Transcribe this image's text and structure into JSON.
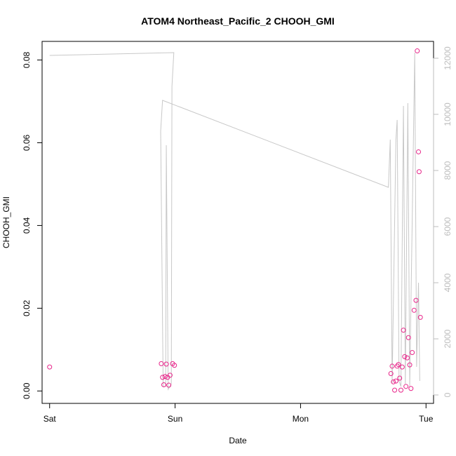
{
  "chart_data": {
    "type": "scatter",
    "title": "ATOM4 Northeast_Pacific_2 CHOOH_GMI",
    "xlabel": "Date",
    "ylabel": "CHOOH_GMI",
    "x_ticks": [
      {
        "day": 0,
        "label": "Sat"
      },
      {
        "day": 1,
        "label": "Sun"
      },
      {
        "day": 2,
        "label": "Mon"
      },
      {
        "day": 3,
        "label": "Tue"
      }
    ],
    "xlim": [
      -0.06,
      3.06
    ],
    "ylim": [
      -0.003,
      0.0845
    ],
    "y_ticks": [
      0.0,
      0.02,
      0.04,
      0.06,
      0.08
    ],
    "y_tick_labels": [
      "0.00",
      "0.02",
      "0.04",
      "0.06",
      "0.08"
    ],
    "y2lim": [
      -300,
      12600
    ],
    "y2_ticks": [
      0,
      2000,
      4000,
      6000,
      8000,
      10000,
      12000
    ],
    "y2_tick_labels": [
      "0",
      "2000",
      "4000",
      "6000",
      "8000",
      "10000",
      "12000"
    ],
    "grid": false,
    "colors": {
      "points": "#e8268a",
      "altitude_line": "#c8c8c8",
      "axis": "#000000",
      "right_axis": "#bdbdbd"
    },
    "series": [
      {
        "marker": "open-circle",
        "axis": "left",
        "points": [
          {
            "x": 0.0,
            "y": 0.0058
          },
          {
            "x": 0.89,
            "y": 0.0066
          },
          {
            "x": 0.9,
            "y": 0.0033
          },
          {
            "x": 0.91,
            "y": 0.0015
          },
          {
            "x": 0.92,
            "y": 0.0035
          },
          {
            "x": 0.93,
            "y": 0.0065
          },
          {
            "x": 0.94,
            "y": 0.0033
          },
          {
            "x": 0.95,
            "y": 0.0014
          },
          {
            "x": 0.96,
            "y": 0.0038
          },
          {
            "x": 0.98,
            "y": 0.0066
          },
          {
            "x": 0.995,
            "y": 0.0062
          },
          {
            "x": 2.72,
            "y": 0.0042
          },
          {
            "x": 2.73,
            "y": 0.006
          },
          {
            "x": 2.74,
            "y": 0.0022
          },
          {
            "x": 2.75,
            "y": 0.0002
          },
          {
            "x": 2.76,
            "y": 0.0024
          },
          {
            "x": 2.77,
            "y": 0.006
          },
          {
            "x": 2.78,
            "y": 0.0064
          },
          {
            "x": 2.79,
            "y": 0.0031
          },
          {
            "x": 2.8,
            "y": 0.0002
          },
          {
            "x": 2.81,
            "y": 0.0058
          },
          {
            "x": 2.82,
            "y": 0.0147
          },
          {
            "x": 2.83,
            "y": 0.0083
          },
          {
            "x": 2.84,
            "y": 0.0011
          },
          {
            "x": 2.85,
            "y": 0.008
          },
          {
            "x": 2.86,
            "y": 0.0129
          },
          {
            "x": 2.87,
            "y": 0.0063
          },
          {
            "x": 2.88,
            "y": 0.0006
          },
          {
            "x": 2.89,
            "y": 0.0093
          },
          {
            "x": 2.905,
            "y": 0.0195
          },
          {
            "x": 2.92,
            "y": 0.0219
          },
          {
            "x": 2.93,
            "y": 0.0822
          },
          {
            "x": 2.94,
            "y": 0.0578
          },
          {
            "x": 2.945,
            "y": 0.053
          },
          {
            "x": 2.955,
            "y": 0.0178
          }
        ]
      },
      {
        "marker": "line",
        "axis": "right",
        "points": [
          {
            "x": 0.0,
            "y": 12100
          },
          {
            "x": 0.99,
            "y": 12200
          },
          {
            "x": 0.975,
            "y": 11000
          },
          {
            "x": 0.97,
            "y": 400
          },
          {
            "x": 0.945,
            "y": 200
          },
          {
            "x": 0.93,
            "y": 8900
          },
          {
            "x": 0.925,
            "y": 300
          },
          {
            "x": 0.905,
            "y": 300
          },
          {
            "x": 0.885,
            "y": 9400
          },
          {
            "x": 0.9,
            "y": 10500
          },
          {
            "x": 2.7,
            "y": 7400
          },
          {
            "x": 2.715,
            "y": 9100
          },
          {
            "x": 2.73,
            "y": 400
          },
          {
            "x": 2.76,
            "y": 9100
          },
          {
            "x": 2.77,
            "y": 9800
          },
          {
            "x": 2.785,
            "y": 500
          },
          {
            "x": 2.8,
            "y": 300
          },
          {
            "x": 2.82,
            "y": 10300
          },
          {
            "x": 2.835,
            "y": 400
          },
          {
            "x": 2.855,
            "y": 10400
          },
          {
            "x": 2.87,
            "y": 300
          },
          {
            "x": 2.91,
            "y": 12200
          },
          {
            "x": 2.925,
            "y": 1000
          },
          {
            "x": 2.94,
            "y": 4000
          },
          {
            "x": 2.95,
            "y": 500
          }
        ]
      }
    ]
  }
}
